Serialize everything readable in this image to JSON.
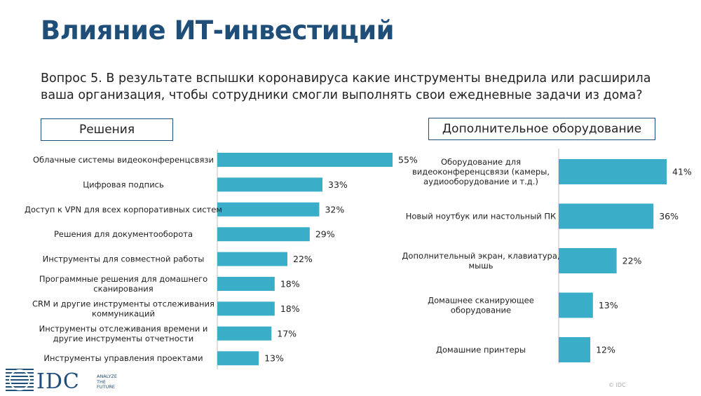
{
  "slide": {
    "title": "Влияние ИТ-инвестиций",
    "question": "Вопрос 5. В результате вспышки коронавируса какие инструменты внедрила или расширила\nваша организация, чтобы сотрудники смогли выполнять свои ежедневные задачи из дома?",
    "copyright": "© IDC"
  },
  "logo": {
    "word": "IDC",
    "tagline": "ANALYZE\nTHE\nFUTURE"
  },
  "colors": {
    "bar": "#3aaec9",
    "title": "#1f4e79",
    "axis": "#bfbfbf"
  },
  "chart_data": [
    {
      "type": "bar",
      "orientation": "horizontal",
      "title": "Решения",
      "categories": [
        [
          "Облачные системы видеоконференцсвязи"
        ],
        [
          "Цифровая подпись"
        ],
        [
          "Доступ к VPN для всех корпоративных систем"
        ],
        [
          "Решения для документооборота"
        ],
        [
          "Инструменты для совместной работы"
        ],
        [
          "Программные решения для домашнего",
          "сканирования"
        ],
        [
          "CRM и другие инструменты отслеживания",
          "коммуникаций"
        ],
        [
          "Инструменты отслеживания времени и",
          "другие инструменты отчетности"
        ],
        [
          "Инструменты управления проектами"
        ]
      ],
      "values": [
        55,
        33,
        32,
        29,
        22,
        18,
        18,
        17,
        13
      ],
      "labels": [
        "55%",
        "33%",
        "32%",
        "29%",
        "22%",
        "18%",
        "18%",
        "17%",
        "13%"
      ],
      "unit": "%"
    },
    {
      "type": "bar",
      "orientation": "horizontal",
      "title": "Дополнительное оборудование",
      "categories": [
        [
          "Оборудование для",
          "видеоконференцсвязи (камеры,",
          "аудиооборудование и т.д.)"
        ],
        [
          "Новый ноутбук или настольный ПК"
        ],
        [
          "Дополнительный экран, клавиатура,",
          "мышь"
        ],
        [
          "Домашнее сканирующее",
          "оборудование"
        ],
        [
          "Домашние принтеры"
        ]
      ],
      "values": [
        41,
        36,
        22,
        13,
        12
      ],
      "labels": [
        "41%",
        "36%",
        "22%",
        "13%",
        "12%"
      ],
      "unit": "%"
    }
  ]
}
